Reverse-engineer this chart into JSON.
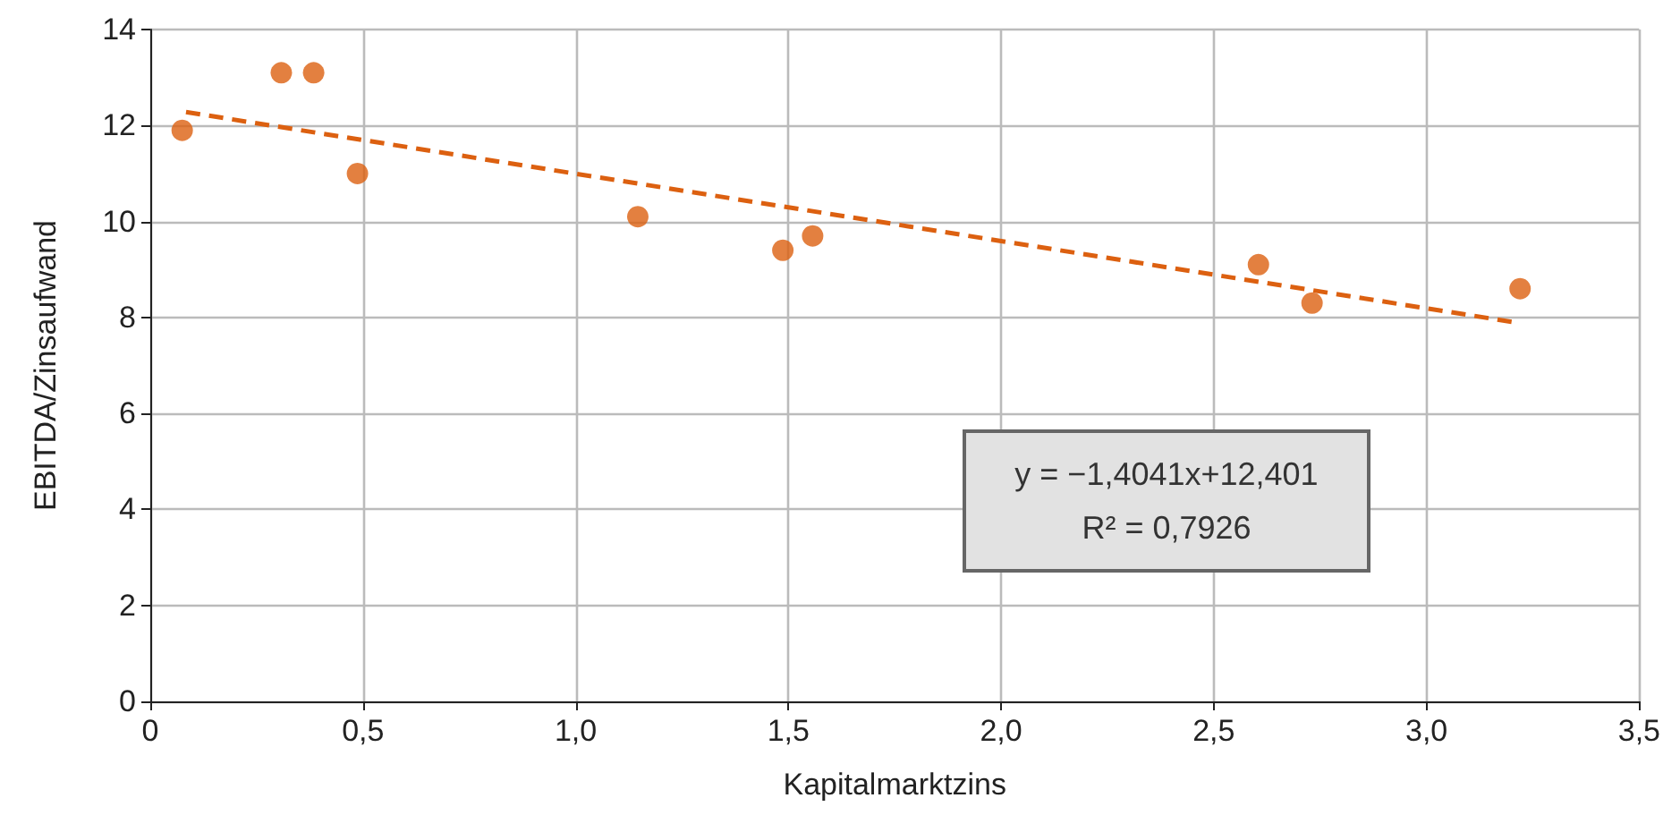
{
  "chart_data": {
    "type": "scatter",
    "xlabel": "Kapitalmarktzins",
    "ylabel": "EBITDA/Zinsaufwand",
    "xlim": [
      0,
      3.5
    ],
    "xticks": [
      0,
      {
        "value": 0.5,
        "label": "0,5"
      },
      {
        "value": 1,
        "label": "1,0"
      },
      {
        "value": 1.5,
        "label": "1,5"
      },
      {
        "value": 2,
        "label": "2,0"
      },
      {
        "value": 2.5,
        "label": "2,5"
      },
      {
        "value": 3,
        "label": "3,0"
      },
      {
        "value": 3.5,
        "label": "3,5"
      }
    ],
    "ylim": [
      0,
      14
    ],
    "yticks": [
      0,
      2,
      4,
      6,
      8,
      10,
      12,
      14
    ],
    "grid": true,
    "series": [
      {
        "color": "#dc6010",
        "marker": "circle",
        "x": [
          0.075,
          0.308,
          0.384,
          0.487,
          1.146,
          1.487,
          1.557,
          2.605,
          2.731,
          3.22
        ],
        "values": [
          11.9,
          13.1,
          13.1,
          11.0,
          10.1,
          9.4,
          9.7,
          9.1,
          8.3,
          8.6
        ]
      },
      {
        "type": "line",
        "color": "#dc6010",
        "marker": "none",
        "line_style": "dashed",
        "x": [
          0.084,
          3.2
        ],
        "values": [
          12.28,
          7.91
        ]
      }
    ],
    "annotations": [
      "y = −1,4041x+12,401",
      "R² = 0,7926"
    ]
  }
}
